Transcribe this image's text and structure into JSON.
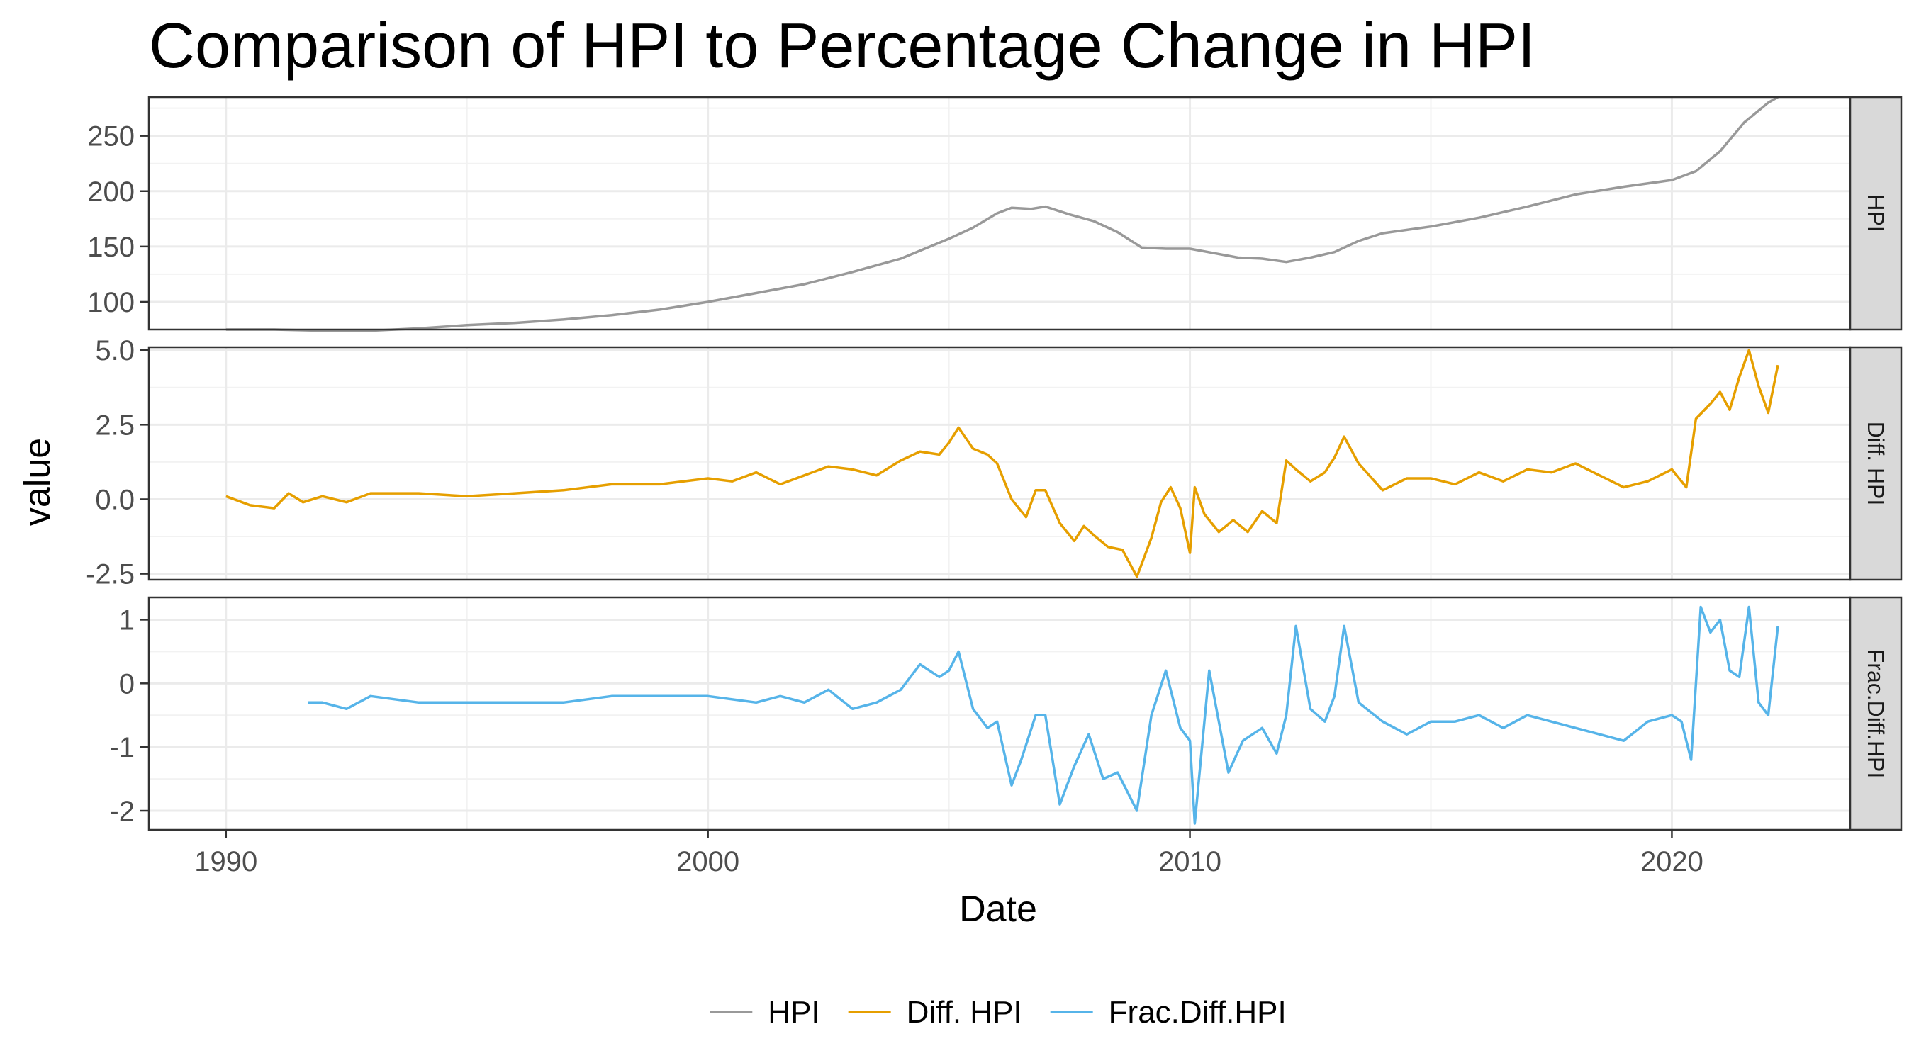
{
  "chart_data": {
    "type": "line",
    "title": "Comparison of HPI to Percentage Change in HPI",
    "xlabel": "Date",
    "ylabel": "value",
    "x_ticks": [
      "1990",
      "2000",
      "2010",
      "2020"
    ],
    "xlim": [
      1988.4,
      2023.7
    ],
    "legend_position": "bottom",
    "grid": true,
    "panels": [
      {
        "strip": "HPI",
        "color": "#999999",
        "ylim": [
          75,
          285
        ],
        "y_ticks": [
          "100",
          "150",
          "200",
          "250"
        ],
        "series": {
          "name": "HPI",
          "x": [
            1990.0,
            1991.0,
            1992.0,
            1993.0,
            1994.0,
            1995.0,
            1996.0,
            1997.0,
            1998.0,
            1999.0,
            2000.0,
            2001.0,
            2002.0,
            2003.0,
            2004.0,
            2005.0,
            2005.5,
            2006.0,
            2006.3,
            2006.7,
            2007.0,
            2007.5,
            2008.0,
            2008.5,
            2009.0,
            2009.5,
            2010.0,
            2010.5,
            2011.0,
            2011.5,
            2012.0,
            2012.5,
            2013.0,
            2013.5,
            2014.0,
            2015.0,
            2016.0,
            2017.0,
            2018.0,
            2019.0,
            2020.0,
            2020.5,
            2021.0,
            2021.5,
            2022.0,
            2022.2
          ],
          "values": [
            75,
            75,
            74,
            74,
            76,
            79,
            81,
            84,
            88,
            93,
            100,
            108,
            116,
            127,
            139,
            157,
            167,
            180,
            185,
            184,
            186,
            179,
            173,
            163,
            149,
            148,
            148,
            144,
            140,
            139,
            136,
            140,
            145,
            155,
            162,
            168,
            176,
            186,
            197,
            204,
            210,
            218,
            236,
            262,
            280,
            285
          ]
        }
      },
      {
        "strip": "Diff. HPI",
        "color": "#E69F00",
        "ylim": [
          -2.7,
          5.1
        ],
        "y_ticks": [
          "-2.5",
          "0.0",
          "2.5",
          "5.0"
        ],
        "series": {
          "name": "Diff. HPI",
          "x": [
            1990.0,
            1990.5,
            1991.0,
            1991.3,
            1991.6,
            1992.0,
            1992.5,
            1993.0,
            1994.0,
            1995.0,
            1996.0,
            1997.0,
            1998.0,
            1999.0,
            2000.0,
            2000.5,
            2001.0,
            2001.5,
            2002.0,
            2002.5,
            2003.0,
            2003.5,
            2004.0,
            2004.4,
            2004.8,
            2005.0,
            2005.2,
            2005.5,
            2005.8,
            2006.0,
            2006.3,
            2006.6,
            2006.8,
            2007.0,
            2007.3,
            2007.6,
            2007.8,
            2008.0,
            2008.3,
            2008.6,
            2008.9,
            2009.2,
            2009.4,
            2009.6,
            2009.8,
            2010.0,
            2010.1,
            2010.3,
            2010.6,
            2010.9,
            2011.2,
            2011.5,
            2011.8,
            2012.0,
            2012.2,
            2012.5,
            2012.8,
            2013.0,
            2013.2,
            2013.5,
            2014.0,
            2014.5,
            2015.0,
            2015.5,
            2016.0,
            2016.5,
            2017.0,
            2017.5,
            2018.0,
            2018.5,
            2019.0,
            2019.5,
            2020.0,
            2020.3,
            2020.5,
            2020.8,
            2021.0,
            2021.2,
            2021.4,
            2021.6,
            2021.8,
            2022.0,
            2022.2
          ],
          "values": [
            0.1,
            -0.2,
            -0.3,
            0.2,
            -0.1,
            0.1,
            -0.1,
            0.2,
            0.2,
            0.1,
            0.2,
            0.3,
            0.5,
            0.5,
            0.7,
            0.6,
            0.9,
            0.5,
            0.8,
            1.1,
            1.0,
            0.8,
            1.3,
            1.6,
            1.5,
            1.9,
            2.4,
            1.7,
            1.5,
            1.2,
            0.0,
            -0.6,
            0.3,
            0.3,
            -0.8,
            -1.4,
            -0.9,
            -1.2,
            -1.6,
            -1.7,
            -2.6,
            -1.3,
            -0.1,
            0.4,
            -0.3,
            -1.8,
            0.4,
            -0.5,
            -1.1,
            -0.7,
            -1.1,
            -0.4,
            -0.8,
            1.3,
            1.0,
            0.6,
            0.9,
            1.4,
            2.1,
            1.2,
            0.3,
            0.7,
            0.7,
            0.5,
            0.9,
            0.6,
            1.0,
            0.9,
            1.2,
            0.8,
            0.4,
            0.6,
            1.0,
            0.4,
            2.7,
            3.2,
            3.6,
            3.0,
            4.1,
            5.0,
            3.8,
            2.9,
            4.5
          ]
        }
      },
      {
        "strip": "Frac.Diff.HPI",
        "color": "#56B4E9",
        "ylim": [
          -2.3,
          1.35
        ],
        "y_ticks": [
          "-2",
          "-1",
          "0",
          "1"
        ],
        "series": {
          "name": "Frac.Diff.HPI",
          "x": [
            1991.7,
            1992.0,
            1992.5,
            1993.0,
            1994.0,
            1995.0,
            1996.0,
            1997.0,
            1998.0,
            1999.0,
            2000.0,
            2001.0,
            2001.5,
            2002.0,
            2002.5,
            2003.0,
            2003.5,
            2004.0,
            2004.4,
            2004.8,
            2005.0,
            2005.2,
            2005.5,
            2005.8,
            2006.0,
            2006.3,
            2006.5,
            2006.8,
            2007.0,
            2007.3,
            2007.6,
            2007.9,
            2008.2,
            2008.5,
            2008.9,
            2009.2,
            2009.5,
            2009.8,
            2010.0,
            2010.1,
            2010.4,
            2010.8,
            2011.1,
            2011.5,
            2011.8,
            2012.0,
            2012.2,
            2012.5,
            2012.8,
            2013.0,
            2013.2,
            2013.5,
            2014.0,
            2014.5,
            2015.0,
            2015.5,
            2016.0,
            2016.5,
            2017.0,
            2017.5,
            2018.0,
            2018.5,
            2019.0,
            2019.5,
            2020.0,
            2020.2,
            2020.4,
            2020.6,
            2020.8,
            2021.0,
            2021.2,
            2021.4,
            2021.6,
            2021.8,
            2022.0,
            2022.2
          ],
          "values": [
            -0.3,
            -0.3,
            -0.4,
            -0.2,
            -0.3,
            -0.3,
            -0.3,
            -0.3,
            -0.2,
            -0.2,
            -0.2,
            -0.3,
            -0.2,
            -0.3,
            -0.1,
            -0.4,
            -0.3,
            -0.1,
            0.3,
            0.1,
            0.2,
            0.5,
            -0.4,
            -0.7,
            -0.6,
            -1.6,
            -1.2,
            -0.5,
            -0.5,
            -1.9,
            -1.3,
            -0.8,
            -1.5,
            -1.4,
            -2.0,
            -0.5,
            0.2,
            -0.7,
            -0.9,
            -2.2,
            0.2,
            -1.4,
            -0.9,
            -0.7,
            -1.1,
            -0.5,
            0.9,
            -0.4,
            -0.6,
            -0.2,
            0.9,
            -0.3,
            -0.6,
            -0.8,
            -0.6,
            -0.6,
            -0.5,
            -0.7,
            -0.5,
            -0.6,
            -0.7,
            -0.8,
            -0.9,
            -0.6,
            -0.5,
            -0.6,
            -1.2,
            1.2,
            0.8,
            1.0,
            0.2,
            0.1,
            1.2,
            -0.3,
            -0.5,
            0.9
          ]
        }
      }
    ]
  }
}
